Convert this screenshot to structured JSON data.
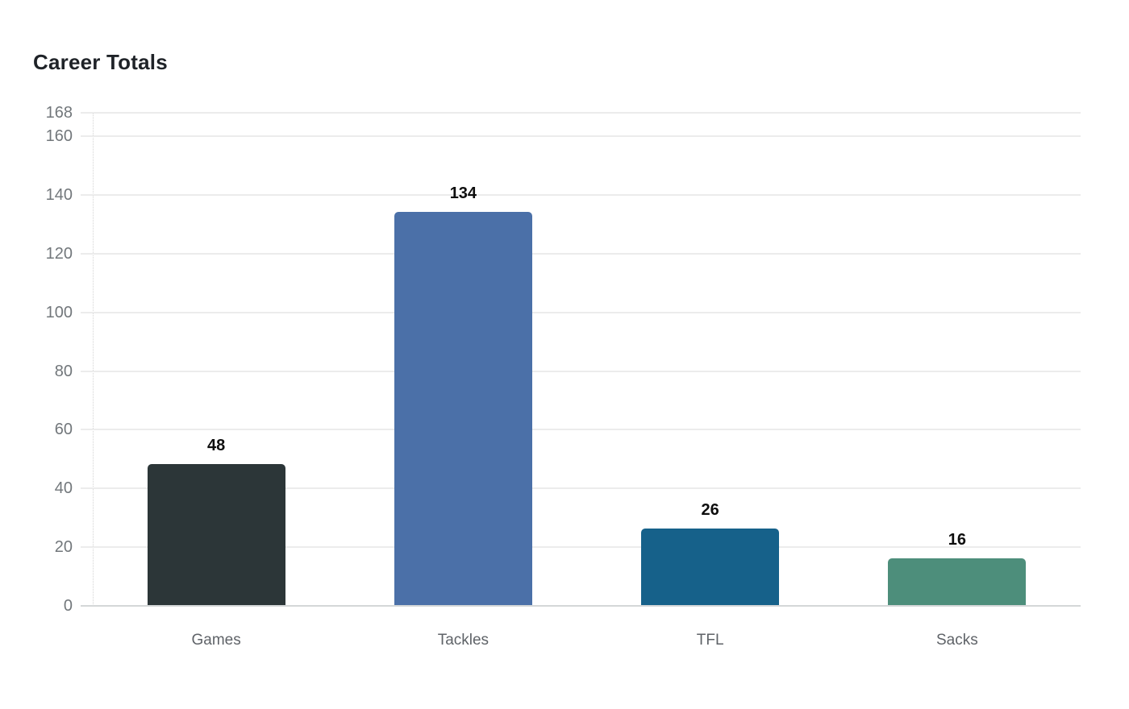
{
  "page": {
    "background": "#ffffff"
  },
  "chart_data": {
    "type": "bar",
    "title": "Career Totals",
    "categories": [
      "Games",
      "Tackles",
      "TFL",
      "Sacks"
    ],
    "values": [
      48,
      134,
      26,
      16
    ],
    "value_labels": [
      "48",
      "134",
      "26",
      "16"
    ],
    "bar_colors": [
      "#2c3638",
      "#4b70a8",
      "#16618a",
      "#4d8e7b"
    ],
    "xlabel": "",
    "ylabel": "",
    "ylim": [
      0,
      168
    ],
    "yticks": [
      0,
      20,
      40,
      60,
      80,
      100,
      120,
      140,
      160,
      168
    ],
    "grid": true,
    "legend": false
  },
  "style": {
    "title_color": "#1f2328",
    "tick_label_color": "#72777b",
    "category_label_color": "#5f6368",
    "value_label_color": "#0e0e0e",
    "gridline_color": "#ececec",
    "baseline_color": "#d4d7d8",
    "axis_dotted_color": "#d4d4d4"
  }
}
